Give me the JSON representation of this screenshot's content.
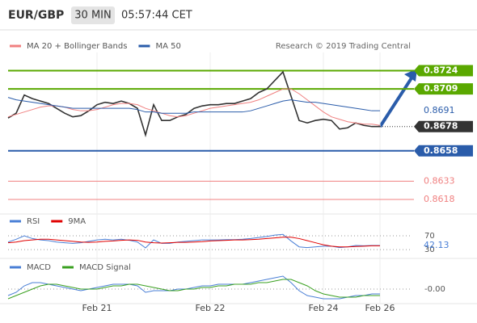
{
  "header": {
    "symbol": "EUR/GBP",
    "interval": "30 MIN",
    "time": "05:57:44 CET",
    "credit": "Research © 2019 Trading Central"
  },
  "chart_data": [
    {
      "type": "line",
      "categories": [
        null,
        null,
        null,
        null,
        null,
        null,
        null,
        null,
        null,
        null,
        null,
        "Feb 21",
        null,
        null,
        null,
        null,
        null,
        null,
        null,
        null,
        null,
        null,
        null,
        null,
        null,
        "Feb 22",
        null,
        null,
        null,
        null,
        null,
        null,
        null,
        null,
        null,
        null,
        null,
        null,
        null,
        "Feb 24",
        null,
        null,
        null,
        null,
        null,
        null,
        "Feb 26"
      ],
      "series": [
        {
          "color": "#333333",
          "end_label": "box",
          "values": [
            0.8685,
            0.8689,
            0.8704,
            0.8701,
            0.8699,
            0.8697,
            0.8693,
            0.8689,
            0.8686,
            0.8687,
            0.8691,
            0.8696,
            0.8698,
            0.8697,
            0.8699,
            0.8697,
            0.8693,
            0.8671,
            0.8696,
            0.8683,
            0.8683,
            0.8686,
            0.8688,
            0.8693,
            0.8695,
            0.8696,
            0.8696,
            0.8697,
            0.8697,
            0.8699,
            0.8701,
            0.8706,
            0.8709,
            0.8716,
            0.8723,
            0.8703,
            0.8683,
            0.8681,
            0.8683,
            0.8684,
            0.8683,
            0.8676,
            0.8677,
            0.8681,
            0.8679,
            0.8678,
            0.8678
          ]
        },
        {
          "name": "MA 20 + Bollinger Bands",
          "color": "#f08080",
          "values": [
            0.8686,
            0.8688,
            0.869,
            0.8692,
            0.8694,
            0.8695,
            0.8695,
            0.8694,
            0.8692,
            0.8691,
            0.8691,
            0.8692,
            0.8694,
            0.8696,
            0.8697,
            0.8697,
            0.8696,
            0.8693,
            0.8691,
            0.8689,
            0.8687,
            0.8686,
            0.8687,
            0.8689,
            0.8691,
            0.8693,
            0.8694,
            0.8695,
            0.8696,
            0.8697,
            0.8698,
            0.87,
            0.8703,
            0.8706,
            0.8709,
            0.8709,
            0.8705,
            0.87,
            0.8695,
            0.869,
            0.8686,
            0.8684,
            0.8682,
            0.8681,
            0.868,
            0.868,
            0.8679
          ]
        },
        {
          "name": "MA 50",
          "color": "#2a5caa",
          "end_label": "text",
          "values": [
            0.8702,
            0.87,
            0.8699,
            0.8698,
            0.8697,
            0.8696,
            0.8695,
            0.8694,
            0.8693,
            0.8693,
            0.8693,
            0.8693,
            0.8693,
            0.8693,
            0.8693,
            0.8693,
            0.8692,
            0.869,
            0.869,
            0.8689,
            0.8689,
            0.8689,
            0.8689,
            0.869,
            0.869,
            0.869,
            0.869,
            0.869,
            0.869,
            0.869,
            0.8691,
            0.8693,
            0.8695,
            0.8697,
            0.8699,
            0.87,
            0.8699,
            0.8698,
            0.8698,
            0.8697,
            0.8696,
            0.8695,
            0.8694,
            0.8693,
            0.8692,
            0.8691,
            0.8691
          ]
        }
      ],
      "levels": [
        {
          "value": 0.8724,
          "color": "#5aa800",
          "style": "box"
        },
        {
          "value": 0.8709,
          "color": "#5aa800",
          "style": "box"
        },
        {
          "value": 0.8658,
          "color": "#2a5caa",
          "style": "box"
        },
        {
          "value": 0.8633,
          "color": "#f08080",
          "style": "text"
        },
        {
          "value": 0.8618,
          "color": "#f08080",
          "style": "text"
        }
      ],
      "ylim": [
        0.8608,
        0.8739
      ]
    },
    {
      "type": "line",
      "series": [
        {
          "name": "RSI",
          "color": "#4a7fd6",
          "end_label": "text",
          "values": [
            52,
            60,
            70,
            62,
            58,
            56,
            52,
            50,
            48,
            50,
            54,
            58,
            60,
            58,
            60,
            57,
            52,
            35,
            58,
            48,
            48,
            52,
            54,
            56,
            58,
            58,
            58,
            59,
            59,
            60,
            62,
            65,
            68,
            72,
            74,
            55,
            38,
            36,
            38,
            40,
            40,
            36,
            38,
            42,
            41,
            42,
            42.13
          ]
        },
        {
          "name": "9MA",
          "color": "#e00000",
          "values": [
            50,
            52,
            56,
            58,
            60,
            60,
            58,
            56,
            54,
            52,
            51,
            52,
            54,
            55,
            57,
            58,
            57,
            52,
            50,
            49,
            50,
            51,
            51,
            52,
            53,
            55,
            56,
            57,
            58,
            58,
            59,
            60,
            62,
            64,
            66,
            66,
            62,
            56,
            50,
            44,
            40,
            38,
            38,
            39,
            40,
            41,
            41
          ]
        }
      ],
      "ylim": [
        21,
        91
      ],
      "yticks": [
        70,
        30
      ]
    },
    {
      "type": "line",
      "series": [
        {
          "name": "MACD",
          "color": "#4a7fd6",
          "values": [
            -0.0004,
            -0.0002,
            0.0002,
            0.0004,
            0.0004,
            0.0003,
            0.0002,
            0.0001,
            0,
            -0.0001,
            0,
            0.0001,
            0.0002,
            0.0003,
            0.0003,
            0.0003,
            0.0002,
            -0.0002,
            -0.0001,
            -0.0001,
            -0.0001,
            0,
            0,
            0.0001,
            0.0002,
            0.0002,
            0.0003,
            0.0003,
            0.0003,
            0.0003,
            0.0004,
            0.0005,
            0.0006,
            0.0007,
            0.0008,
            0.0004,
            -0.0001,
            -0.0004,
            -0.0005,
            -0.0006,
            -0.0006,
            -0.0006,
            -0.0005,
            -0.0004,
            -0.0004,
            -0.0003,
            -0.0003
          ]
        },
        {
          "name": "MACD Signal",
          "color": "#3aa020",
          "values": [
            -0.0006,
            -0.0004,
            -0.0002,
            0,
            0.0002,
            0.0003,
            0.0003,
            0.0002,
            0.0001,
            0,
            0,
            0,
            0.0001,
            0.0002,
            0.0002,
            0.0003,
            0.0003,
            0.0002,
            0.0001,
            0,
            -0.0001,
            -0.0001,
            0,
            0,
            0.0001,
            0.0001,
            0.0002,
            0.0002,
            0.0003,
            0.0003,
            0.0003,
            0.0004,
            0.0004,
            0.0005,
            0.0006,
            0.0006,
            0.0004,
            0.0002,
            -0.0001,
            -0.0003,
            -0.0004,
            -0.0005,
            -0.0005,
            -0.0005,
            -0.0004,
            -0.0004,
            -0.0004
          ]
        }
      ],
      "ylim": [
        -0.0007,
        0.0009
      ],
      "yticks": [
        {
          "value": 0,
          "label": "-0.00"
        }
      ]
    }
  ]
}
